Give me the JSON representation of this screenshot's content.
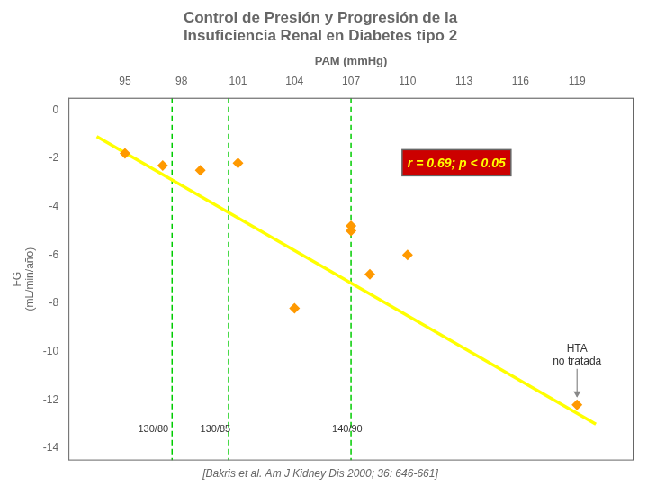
{
  "chart_data": {
    "type": "scatter",
    "title": [
      "Control de Presión y Progresión de la",
      "Insuficiencia Renal en Diabetes tipo 2"
    ],
    "x_label": "PAM (mmHg)",
    "y_label": "FG\n(mL/min/año)",
    "series": [
      {
        "type": "line",
        "color": "#FFFF00",
        "line_style": "solid",
        "x": [
          93.5,
          120
        ],
        "values": [
          -1.1,
          -13.0
        ]
      },
      {
        "type": "scatter",
        "color": "#FF9900",
        "marker": "diamond",
        "x": [
          95,
          97,
          99,
          101,
          104,
          107,
          107,
          108,
          110,
          119
        ],
        "values": [
          -1.8,
          -2.3,
          -2.5,
          -2.2,
          -8.2,
          -5.0,
          -4.8,
          -6.8,
          -6.0,
          -12.2
        ]
      }
    ],
    "vlines": {
      "x": [
        97.5,
        100.5,
        107.0
      ],
      "color": "#00CC00",
      "line_style": "dashed"
    },
    "annotations": [
      {
        "text": "r = 0.69; p < 0.05",
        "color": "#FFFF00",
        "background": "#CC0000"
      },
      {
        "text": "HTA\nno tratada",
        "x": 119.0,
        "y": -12.2,
        "arrow": true
      },
      {
        "text": "130/80",
        "x": 96.5,
        "y": -13.0
      },
      {
        "text": "130/85",
        "x": 99.8,
        "y": -13.0
      },
      {
        "text": "140/90",
        "x": 106.8,
        "y": -13.0
      }
    ],
    "caption": "[Bakris et al. Am J Kidney Dis 2000; 36: 646-661]",
    "xlim": [
      92,
      122
    ],
    "xticks": [
      95,
      98,
      101,
      104,
      107,
      110,
      113,
      116,
      119
    ],
    "ylim": [
      -14.5,
      0.5
    ],
    "yticks": [
      0,
      -2,
      -4,
      -6,
      -8,
      -10,
      -12,
      -14
    ],
    "grid": false
  }
}
